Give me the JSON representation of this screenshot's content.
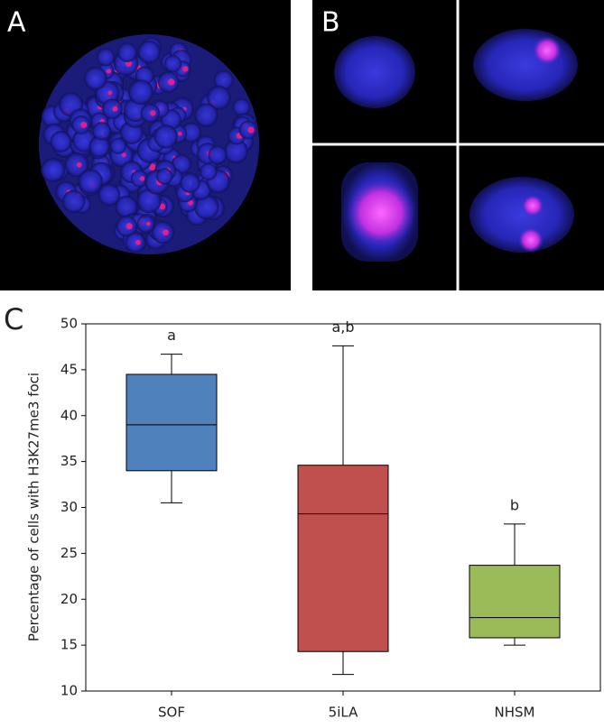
{
  "panel_labels": [
    "A",
    "B"
  ],
  "chart_data": {
    "type": "box",
    "panel_label": "C",
    "y_label": "Percentage of cells with H3K27me3 foci",
    "categories": [
      "SOF",
      "5iLA",
      "NHSM"
    ],
    "boxes": [
      {
        "min": 30.5,
        "q1": 34,
        "median": 39,
        "q3": 44.5,
        "max": 46.7,
        "color": "#4f81bd",
        "annotation": "a"
      },
      {
        "min": 11.8,
        "q1": 14.3,
        "median": 29.3,
        "q3": 34.6,
        "max": 47.6,
        "color": "#c0504d",
        "annotation": "a,b"
      },
      {
        "min": 15,
        "q1": 15.8,
        "median": 18,
        "q3": 23.7,
        "max": 28.2,
        "color": "#9bbb59",
        "annotation": "b"
      }
    ],
    "ylim": [
      10,
      50
    ],
    "yticks": [
      10,
      15,
      20,
      25,
      30,
      35,
      40,
      45,
      50
    ]
  }
}
